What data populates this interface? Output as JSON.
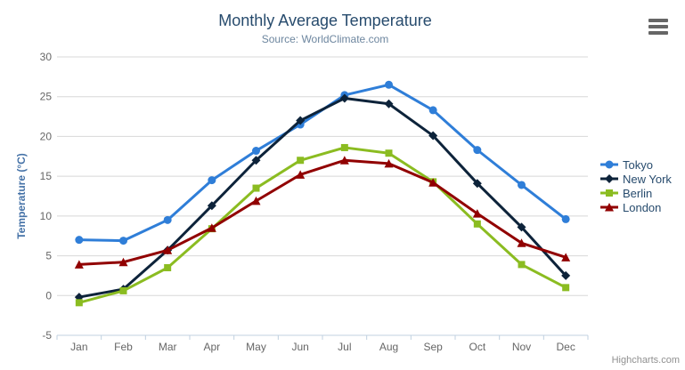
{
  "chart_data": {
    "type": "line",
    "title": "Monthly Average Temperature",
    "subtitle": "Source: WorldClimate.com",
    "xlabel": "",
    "ylabel": "Temperature (°C)",
    "categories": [
      "Jan",
      "Feb",
      "Mar",
      "Apr",
      "May",
      "Jun",
      "Jul",
      "Aug",
      "Sep",
      "Oct",
      "Nov",
      "Dec"
    ],
    "series": [
      {
        "name": "Tokyo",
        "color": "#2f7ed8",
        "marker": "circle",
        "values": [
          7.0,
          6.9,
          9.5,
          14.5,
          18.2,
          21.5,
          25.2,
          26.5,
          23.3,
          18.3,
          13.9,
          9.6
        ]
      },
      {
        "name": "New York",
        "color": "#0d233a",
        "marker": "diamond",
        "values": [
          -0.2,
          0.8,
          5.7,
          11.3,
          17.0,
          22.0,
          24.8,
          24.1,
          20.1,
          14.1,
          8.6,
          2.5
        ]
      },
      {
        "name": "Berlin",
        "color": "#8bbc21",
        "marker": "square",
        "values": [
          -0.9,
          0.6,
          3.5,
          8.4,
          13.5,
          17.0,
          18.6,
          17.9,
          14.3,
          9.0,
          3.9,
          1.0
        ]
      },
      {
        "name": "London",
        "color": "#910000",
        "marker": "triangle",
        "values": [
          3.9,
          4.2,
          5.7,
          8.5,
          11.9,
          15.2,
          17.0,
          16.6,
          14.2,
          10.3,
          6.6,
          4.8
        ]
      }
    ],
    "ylim": [
      -5,
      30
    ],
    "yticks": [
      -5,
      0,
      5,
      10,
      15,
      20,
      25,
      30
    ],
    "grid": true,
    "legend_position": "right",
    "colors": {
      "grid": "#d8d8d8",
      "axis_line": "#c0d0e0",
      "axis_labels": "#666666",
      "axis_title": "#4572a7",
      "title": "#274b6d",
      "subtitle": "#6d869f",
      "legend_text": "#274b6d"
    }
  },
  "credits": {
    "label": "Highcharts.com"
  }
}
